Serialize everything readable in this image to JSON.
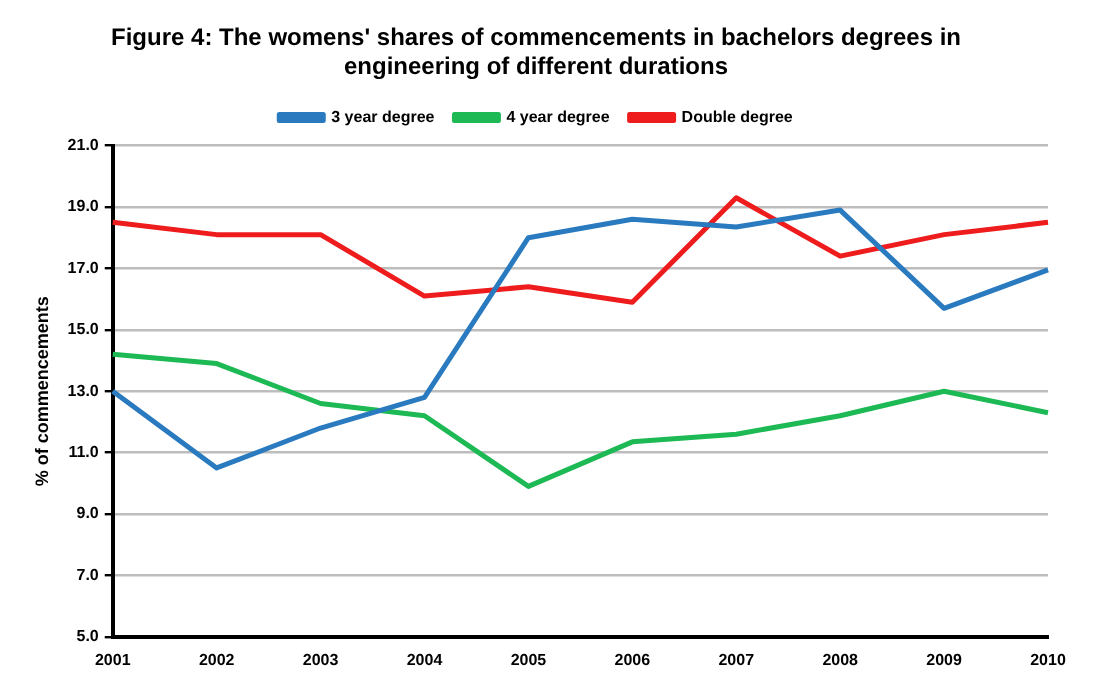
{
  "chart_data": {
    "type": "line",
    "title": "Figure 4: The womens' shares of commencements in bachelors degrees in engineering of different durations",
    "ylabel": "% of commencements",
    "categories": [
      "2001",
      "2002",
      "2003",
      "2004",
      "2005",
      "2006",
      "2007",
      "2008",
      "2009",
      "2010"
    ],
    "series": [
      {
        "name": "3 year degree",
        "color": "#2a7abf",
        "values": [
          13.0,
          10.5,
          11.8,
          12.8,
          18.0,
          18.6,
          18.35,
          18.9,
          15.7,
          16.95
        ]
      },
      {
        "name": "4 year degree",
        "color": "#1db954",
        "values": [
          14.2,
          13.9,
          12.6,
          12.2,
          9.9,
          11.35,
          11.6,
          12.2,
          13.0,
          12.3
        ]
      },
      {
        "name": "Double degree",
        "color": "#ee1c1c",
        "values": [
          18.5,
          18.1,
          18.1,
          16.1,
          16.4,
          15.9,
          19.3,
          17.4,
          18.1,
          18.5
        ]
      }
    ],
    "ylim": [
      5,
      21
    ],
    "yticks": [
      {
        "value": 5,
        "label": "5.0"
      },
      {
        "value": 7,
        "label": "7.0"
      },
      {
        "value": 9,
        "label": "9.0"
      },
      {
        "value": 11,
        "label": "11.0"
      },
      {
        "value": 13,
        "label": "13.0"
      },
      {
        "value": 15,
        "label": "15.0"
      },
      {
        "value": 17,
        "label": "17.0"
      },
      {
        "value": 19,
        "label": "19.0"
      },
      {
        "value": 21,
        "label": "21.0"
      }
    ],
    "grid": "y",
    "legend": "top",
    "marker": "none",
    "line_style": "solid"
  }
}
